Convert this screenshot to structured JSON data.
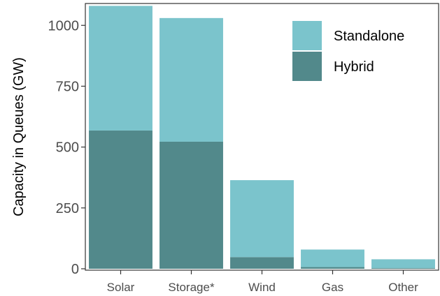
{
  "chart_data": {
    "type": "bar",
    "stacked": true,
    "categories": [
      "Solar",
      "Storage*",
      "Wind",
      "Gas",
      "Other"
    ],
    "series": [
      {
        "name": "Hybrid",
        "color": "#52898b",
        "values": [
          568,
          522,
          48,
          7,
          3
        ]
      },
      {
        "name": "Standalone",
        "color": "#7bc4cc",
        "values": [
          512,
          508,
          316,
          72,
          36
        ]
      }
    ],
    "ylabel": "Capacity in Queues (GW)",
    "xlabel": "",
    "ylim": [
      0,
      1100
    ],
    "yticks": [
      0,
      250,
      500,
      750,
      1000
    ],
    "ytick_labels": [
      "0",
      "250",
      "500",
      "750",
      "1000"
    ],
    "legend": {
      "position": "top-right",
      "entries": [
        "Standalone",
        "Hybrid"
      ]
    },
    "grid": false,
    "panel_border": true
  }
}
